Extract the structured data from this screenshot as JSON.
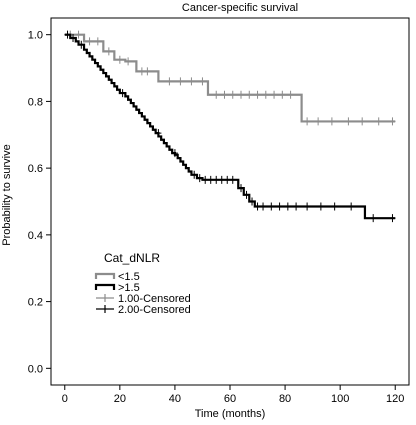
{
  "chart_data": {
    "type": "line",
    "title": "Cancer-specific survival",
    "xlabel": "Time (months)",
    "ylabel": "Probability to survive",
    "xlim": [
      -5,
      125
    ],
    "ylim": [
      -0.05,
      1.05
    ],
    "xticks": [
      0,
      20,
      40,
      60,
      80,
      100,
      120
    ],
    "xtick_labels": [
      "0",
      "20",
      "40",
      "60",
      "80",
      "100",
      "120"
    ],
    "yticks": [
      0.0,
      0.2,
      0.4,
      0.6,
      0.8,
      1.0
    ],
    "ytick_labels": [
      "0.0",
      "0.2",
      "0.4",
      "0.6",
      "0.8",
      "1.0"
    ],
    "grid": false,
    "legend": {
      "title": "Cat_dNLR",
      "placement": "bottom-left",
      "entries": [
        "<1.5",
        ">1.5",
        "1.00-Censored",
        "2.00-Censored"
      ]
    },
    "series": [
      {
        "name": "<1.5",
        "color": "#8c8c8c",
        "steps": [
          [
            0,
            1.0
          ],
          [
            7,
            0.98
          ],
          [
            14,
            0.95
          ],
          [
            18,
            0.925
          ],
          [
            22,
            0.92
          ],
          [
            26,
            0.89
          ],
          [
            34,
            0.86
          ],
          [
            52,
            0.82
          ],
          [
            86,
            0.74
          ],
          [
            120,
            0.74
          ]
        ],
        "censored": [
          [
            2,
            1.0
          ],
          [
            5,
            1.0
          ],
          [
            9,
            0.98
          ],
          [
            12,
            0.98
          ],
          [
            16,
            0.95
          ],
          [
            20,
            0.925
          ],
          [
            23,
            0.92
          ],
          [
            28,
            0.89
          ],
          [
            30,
            0.89
          ],
          [
            38,
            0.86
          ],
          [
            42,
            0.86
          ],
          [
            46,
            0.86
          ],
          [
            50,
            0.86
          ],
          [
            55,
            0.82
          ],
          [
            58,
            0.82
          ],
          [
            61,
            0.82
          ],
          [
            64,
            0.82
          ],
          [
            67,
            0.82
          ],
          [
            70,
            0.82
          ],
          [
            73,
            0.82
          ],
          [
            76,
            0.82
          ],
          [
            79,
            0.82
          ],
          [
            82,
            0.82
          ],
          [
            88,
            0.74
          ],
          [
            92,
            0.74
          ],
          [
            97,
            0.74
          ],
          [
            103,
            0.74
          ],
          [
            108,
            0.74
          ],
          [
            114,
            0.74
          ],
          [
            119,
            0.74
          ]
        ]
      },
      {
        "name": ">1.5",
        "color": "#000000",
        "steps": [
          [
            0,
            1.0
          ],
          [
            2,
            0.99
          ],
          [
            4,
            0.98
          ],
          [
            5,
            0.97
          ],
          [
            7,
            0.955
          ],
          [
            8,
            0.945
          ],
          [
            9,
            0.935
          ],
          [
            10,
            0.925
          ],
          [
            11,
            0.915
          ],
          [
            12,
            0.905
          ],
          [
            13,
            0.895
          ],
          [
            14,
            0.885
          ],
          [
            15,
            0.875
          ],
          [
            16,
            0.865
          ],
          [
            17,
            0.855
          ],
          [
            18,
            0.845
          ],
          [
            19,
            0.835
          ],
          [
            20,
            0.825
          ],
          [
            22,
            0.815
          ],
          [
            23,
            0.805
          ],
          [
            24,
            0.795
          ],
          [
            25,
            0.785
          ],
          [
            26,
            0.775
          ],
          [
            27,
            0.765
          ],
          [
            28,
            0.755
          ],
          [
            29,
            0.745
          ],
          [
            30,
            0.735
          ],
          [
            31,
            0.725
          ],
          [
            32,
            0.715
          ],
          [
            33,
            0.705
          ],
          [
            34,
            0.695
          ],
          [
            35,
            0.685
          ],
          [
            36,
            0.675
          ],
          [
            37,
            0.665
          ],
          [
            38,
            0.655
          ],
          [
            39,
            0.645
          ],
          [
            40,
            0.64
          ],
          [
            41,
            0.63
          ],
          [
            42,
            0.62
          ],
          [
            43,
            0.61
          ],
          [
            44,
            0.6
          ],
          [
            45,
            0.59
          ],
          [
            46,
            0.58
          ],
          [
            48,
            0.57
          ],
          [
            50,
            0.565
          ],
          [
            63,
            0.54
          ],
          [
            65,
            0.52
          ],
          [
            67,
            0.5
          ],
          [
            69,
            0.485
          ],
          [
            109,
            0.45
          ],
          [
            120,
            0.45
          ]
        ],
        "censored": [
          [
            1,
            1.0
          ],
          [
            3,
            0.99
          ],
          [
            6,
            0.97
          ],
          [
            21,
            0.825
          ],
          [
            34,
            0.705
          ],
          [
            40,
            0.645
          ],
          [
            47,
            0.58
          ],
          [
            49,
            0.57
          ],
          [
            51,
            0.565
          ],
          [
            53,
            0.565
          ],
          [
            55,
            0.565
          ],
          [
            57,
            0.565
          ],
          [
            59,
            0.565
          ],
          [
            61,
            0.565
          ],
          [
            64,
            0.54
          ],
          [
            66,
            0.52
          ],
          [
            68,
            0.5
          ],
          [
            70,
            0.485
          ],
          [
            72,
            0.485
          ],
          [
            75,
            0.485
          ],
          [
            78,
            0.485
          ],
          [
            81,
            0.485
          ],
          [
            84,
            0.485
          ],
          [
            88,
            0.485
          ],
          [
            93,
            0.485
          ],
          [
            98,
            0.485
          ],
          [
            104,
            0.485
          ],
          [
            112,
            0.45
          ],
          [
            119,
            0.45
          ]
        ]
      }
    ]
  }
}
